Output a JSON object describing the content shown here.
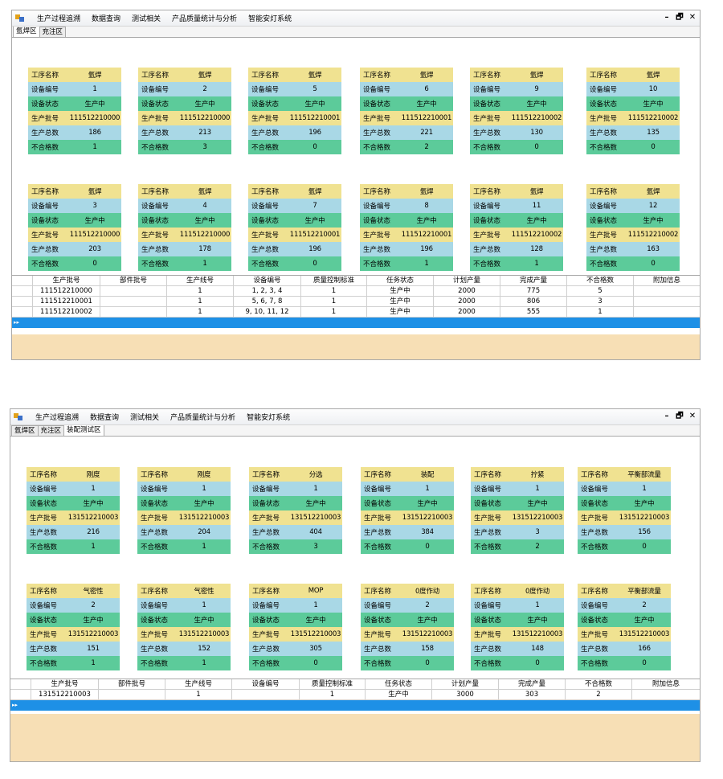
{
  "menu": [
    "生产过程追溯",
    "数据查询",
    "测试相关",
    "产品质量统计与分析",
    "智能安灯系统"
  ],
  "window_controls": [
    "–",
    "🗗",
    "✕"
  ],
  "labels": {
    "process": "工序名称",
    "device": "设备编号",
    "status": "设备状态",
    "batch": "生产批号",
    "total": "生产总数",
    "defect": "不合格数"
  },
  "grid_headers": [
    "生产批号",
    "部件批号",
    "生产线号",
    "设备编号",
    "质量控制标准",
    "任务状态",
    "计划产量",
    "完成产量",
    "不合格数",
    "附加信息"
  ],
  "selected_row_marker": "▸▸",
  "panels": [
    {
      "tabs": [
        "氩焊区",
        "充注区"
      ],
      "active_tab": 0,
      "cards": [
        {
          "process": "氩焊",
          "device": "1",
          "status": "生产中",
          "batch": "111512210000",
          "total": "186",
          "defect": "1"
        },
        {
          "process": "氩焊",
          "device": "2",
          "status": "生产中",
          "batch": "111512210000",
          "total": "213",
          "defect": "3"
        },
        {
          "process": "氩焊",
          "device": "5",
          "status": "生产中",
          "batch": "111512210001",
          "total": "196",
          "defect": "0"
        },
        {
          "process": "氩焊",
          "device": "6",
          "status": "生产中",
          "batch": "111512210001",
          "total": "221",
          "defect": "2"
        },
        {
          "process": "氩焊",
          "device": "9",
          "status": "生产中",
          "batch": "111512210002",
          "total": "130",
          "defect": "0"
        },
        {
          "process": "氩焊",
          "device": "10",
          "status": "生产中",
          "batch": "111512210002",
          "total": "135",
          "defect": "0"
        },
        {
          "process": "氩焊",
          "device": "3",
          "status": "生产中",
          "batch": "111512210000",
          "total": "203",
          "defect": "0"
        },
        {
          "process": "氩焊",
          "device": "4",
          "status": "生产中",
          "batch": "111512210000",
          "total": "178",
          "defect": "1"
        },
        {
          "process": "氩焊",
          "device": "7",
          "status": "生产中",
          "batch": "111512210001",
          "total": "196",
          "defect": "0"
        },
        {
          "process": "氩焊",
          "device": "8",
          "status": "生产中",
          "batch": "111512210001",
          "total": "196",
          "defect": "1"
        },
        {
          "process": "氩焊",
          "device": "11",
          "status": "生产中",
          "batch": "111512210002",
          "total": "128",
          "defect": "1"
        },
        {
          "process": "氩焊",
          "device": "12",
          "status": "生产中",
          "batch": "111512210002",
          "total": "163",
          "defect": "0"
        }
      ],
      "rows": [
        [
          "111512210000",
          "",
          "1",
          "1, 2, 3, 4",
          "1",
          "生产中",
          "2000",
          "775",
          "5",
          ""
        ],
        [
          "111512210001",
          "",
          "1",
          "5, 6, 7, 8",
          "1",
          "生产中",
          "2000",
          "806",
          "3",
          ""
        ],
        [
          "111512210002",
          "",
          "1",
          "9, 10, 11, 12",
          "1",
          "生产中",
          "2000",
          "555",
          "1",
          ""
        ]
      ]
    },
    {
      "tabs": [
        "氩焊区",
        "充注区",
        "装配测试区"
      ],
      "active_tab": 2,
      "cards": [
        {
          "process": "刚度",
          "device": "1",
          "status": "生产中",
          "batch": "131512210003",
          "total": "216",
          "defect": "1"
        },
        {
          "process": "刚度",
          "device": "1",
          "status": "生产中",
          "batch": "131512210003",
          "total": "204",
          "defect": "1"
        },
        {
          "process": "分选",
          "device": "1",
          "status": "生产中",
          "batch": "131512210003",
          "total": "404",
          "defect": "3"
        },
        {
          "process": "装配",
          "device": "1",
          "status": "生产中",
          "batch": "131512210003",
          "total": "384",
          "defect": "0"
        },
        {
          "process": "拧紧",
          "device": "1",
          "status": "生产中",
          "batch": "131512210003",
          "total": "3",
          "defect": "2"
        },
        {
          "process": "平衡部流量",
          "device": "1",
          "status": "生产中",
          "batch": "131512210003",
          "total": "156",
          "defect": "0"
        },
        {
          "process": "气密性",
          "device": "2",
          "status": "生产中",
          "batch": "131512210003",
          "total": "151",
          "defect": "1"
        },
        {
          "process": "气密性",
          "device": "1",
          "status": "生产中",
          "batch": "131512210003",
          "total": "152",
          "defect": "1"
        },
        {
          "process": "MOP",
          "device": "1",
          "status": "生产中",
          "batch": "131512210003",
          "total": "305",
          "defect": "0"
        },
        {
          "process": "0度作动",
          "device": "2",
          "status": "生产中",
          "batch": "131512210003",
          "total": "158",
          "defect": "0"
        },
        {
          "process": "0度作动",
          "device": "1",
          "status": "生产中",
          "batch": "131512210003",
          "total": "148",
          "defect": "0"
        },
        {
          "process": "平衡部流量",
          "device": "2",
          "status": "生产中",
          "batch": "131512210003",
          "total": "166",
          "defect": "0"
        }
      ],
      "rows": [
        [
          "131512210003",
          "",
          "1",
          "",
          "1",
          "生产中",
          "3000",
          "303",
          "2",
          ""
        ]
      ]
    }
  ]
}
